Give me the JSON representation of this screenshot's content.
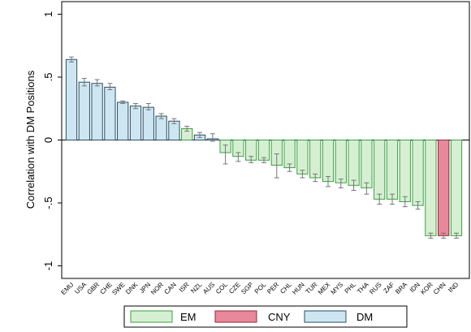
{
  "chart_data": {
    "type": "bar",
    "title": "",
    "xlabel": "",
    "ylabel": "Correlation with DM Positions",
    "ylim": [
      -1.1,
      1.1
    ],
    "yticks": [
      {
        "value": 1,
        "label": "1"
      },
      {
        "value": 0.5,
        "label": ".5"
      },
      {
        "value": 0,
        "label": "0"
      },
      {
        "value": -0.5,
        "label": "-.5"
      },
      {
        "value": -1,
        "label": "-1"
      }
    ],
    "grid": false,
    "legend_position": "bottom",
    "legend": [
      {
        "key": "EM",
        "label": "EM",
        "color": "#d6efd2",
        "edge": "#3aa041"
      },
      {
        "key": "CNY",
        "label": "CNY",
        "color": "#e8889a",
        "edge": "#8b2a3a"
      },
      {
        "key": "DM",
        "label": "DM",
        "color": "#cde6f1",
        "edge": "#2b4f66"
      }
    ],
    "categories": [
      "EMU",
      "USA",
      "GBR",
      "CHE",
      "SWE",
      "DNK",
      "JPN",
      "NOR",
      "CAN",
      "ISR",
      "NZL",
      "AUS",
      "COL",
      "CZE",
      "SGP",
      "POL",
      "PER",
      "CHL",
      "HUN",
      "TUR",
      "MEX",
      "MYS",
      "PHL",
      "THA",
      "RUS",
      "ZAF",
      "BRA",
      "IDN",
      "KOR",
      "CHN",
      "IND"
    ],
    "groups": [
      "DM",
      "DM",
      "DM",
      "DM",
      "DM",
      "DM",
      "DM",
      "DM",
      "DM",
      "EM",
      "DM",
      "DM",
      "EM",
      "EM",
      "EM",
      "EM",
      "EM",
      "EM",
      "EM",
      "EM",
      "EM",
      "EM",
      "EM",
      "EM",
      "EM",
      "EM",
      "EM",
      "EM",
      "EM",
      "CNY",
      "EM"
    ],
    "values": [
      0.64,
      0.46,
      0.45,
      0.42,
      0.3,
      0.27,
      0.26,
      0.19,
      0.15,
      0.09,
      0.04,
      0.01,
      -0.1,
      -0.13,
      -0.16,
      -0.16,
      -0.2,
      -0.22,
      -0.27,
      -0.3,
      -0.33,
      -0.34,
      -0.36,
      -0.38,
      -0.47,
      -0.47,
      -0.49,
      -0.52,
      -0.76,
      -0.76,
      -0.76
    ],
    "error_low": [
      0.62,
      0.43,
      0.43,
      0.4,
      0.29,
      0.25,
      0.24,
      0.17,
      0.13,
      0.07,
      0.02,
      -0.01,
      -0.19,
      -0.17,
      -0.18,
      -0.18,
      -0.3,
      -0.25,
      -0.3,
      -0.33,
      -0.37,
      -0.38,
      -0.4,
      -0.43,
      -0.51,
      -0.51,
      -0.53,
      -0.55,
      -0.78,
      -0.78,
      -0.78
    ],
    "error_high": [
      0.66,
      0.49,
      0.48,
      0.45,
      0.31,
      0.29,
      0.29,
      0.21,
      0.17,
      0.11,
      0.06,
      0.05,
      -0.04,
      -0.1,
      -0.13,
      -0.14,
      -0.11,
      -0.19,
      -0.24,
      -0.27,
      -0.29,
      -0.31,
      -0.32,
      -0.34,
      -0.43,
      -0.43,
      -0.45,
      -0.49,
      -0.74,
      -0.74,
      -0.74
    ]
  }
}
